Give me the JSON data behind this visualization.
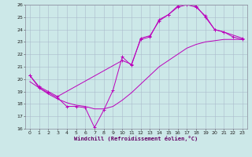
{
  "xlabel": "Windchill (Refroidissement éolien,°C)",
  "ylabel": "",
  "xlim": [
    -0.5,
    23.5
  ],
  "ylim": [
    16,
    26
  ],
  "xticks": [
    0,
    1,
    2,
    3,
    4,
    5,
    6,
    7,
    8,
    9,
    10,
    11,
    12,
    13,
    14,
    15,
    16,
    17,
    18,
    19,
    20,
    21,
    22,
    23
  ],
  "yticks": [
    16,
    17,
    18,
    19,
    20,
    21,
    22,
    23,
    24,
    25,
    26
  ],
  "background_color": "#cce8e8",
  "grid_color": "#aabbcc",
  "line_color": "#bb00bb",
  "line1_x": [
    0,
    1,
    2,
    3,
    4,
    5,
    6,
    7,
    8,
    9,
    10,
    11,
    12,
    13,
    14,
    15,
    16,
    17,
    18,
    19,
    20,
    21,
    22,
    23
  ],
  "line1_y": [
    20.3,
    19.3,
    18.9,
    18.5,
    17.8,
    17.8,
    17.7,
    16.1,
    17.5,
    19.1,
    21.8,
    21.1,
    23.3,
    23.5,
    24.7,
    25.2,
    25.8,
    26.0,
    25.8,
    25.1,
    24.0,
    23.8,
    23.4,
    23.2
  ],
  "line2_x": [
    0,
    1,
    2,
    3,
    4,
    5,
    6,
    7,
    8,
    9,
    10,
    11,
    12,
    13,
    14,
    15,
    16,
    17,
    18,
    19,
    20,
    21,
    22,
    23
  ],
  "line2_y": [
    19.8,
    19.3,
    18.8,
    18.4,
    18.1,
    17.9,
    17.8,
    17.6,
    17.6,
    17.8,
    18.3,
    18.9,
    19.6,
    20.3,
    21.0,
    21.5,
    22.0,
    22.5,
    22.8,
    23.0,
    23.1,
    23.2,
    23.2,
    23.2
  ],
  "line3_x": [
    0,
    1,
    2,
    3,
    10,
    11,
    12,
    13,
    14,
    15,
    16,
    17,
    18,
    19,
    20,
    21,
    23
  ],
  "line3_y": [
    20.3,
    19.4,
    19.0,
    18.6,
    21.5,
    21.2,
    23.2,
    23.4,
    24.8,
    25.2,
    25.9,
    26.1,
    25.9,
    25.0,
    24.0,
    23.8,
    23.3
  ]
}
